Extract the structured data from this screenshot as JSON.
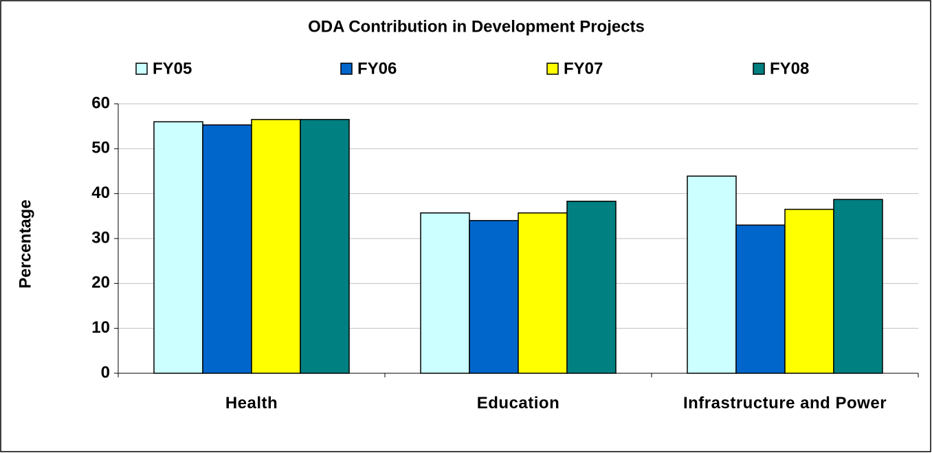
{
  "chart_data": {
    "type": "bar",
    "title": "ODA Contribution in Development Projects",
    "y_label": "Percentage",
    "categories": [
      "Health",
      "Education",
      "Infrastructure and Power"
    ],
    "series": [
      {
        "name": "FY05",
        "color": "#ccffff",
        "values": [
          56.0,
          35.7,
          43.9
        ]
      },
      {
        "name": "FY06",
        "color": "#0066cc",
        "values": [
          55.3,
          34.0,
          33.0
        ]
      },
      {
        "name": "FY07",
        "color": "#ffff00",
        "values": [
          56.5,
          35.7,
          36.5
        ]
      },
      {
        "name": "FY08",
        "color": "#008080",
        "values": [
          56.5,
          38.3,
          38.7
        ]
      }
    ],
    "ylim": [
      0,
      60
    ],
    "yticks": [
      0,
      10,
      20,
      30,
      40,
      50,
      60
    ],
    "grid": true,
    "legend": "top"
  }
}
